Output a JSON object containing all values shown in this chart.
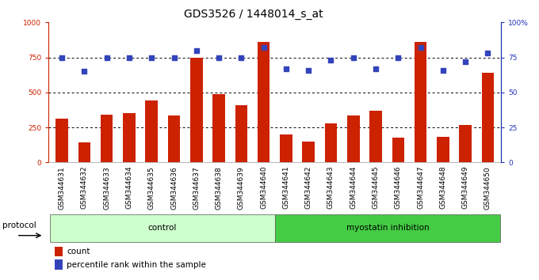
{
  "title": "GDS3526 / 1448014_s_at",
  "samples": [
    "GSM344631",
    "GSM344632",
    "GSM344633",
    "GSM344634",
    "GSM344635",
    "GSM344636",
    "GSM344637",
    "GSM344638",
    "GSM344639",
    "GSM344640",
    "GSM344641",
    "GSM344642",
    "GSM344643",
    "GSM344644",
    "GSM344645",
    "GSM344646",
    "GSM344647",
    "GSM344648",
    "GSM344649",
    "GSM344650"
  ],
  "counts": [
    310,
    145,
    340,
    350,
    440,
    335,
    750,
    490,
    410,
    860,
    200,
    150,
    280,
    335,
    370,
    175,
    860,
    185,
    265,
    640
  ],
  "percentile": [
    75,
    65,
    75,
    75,
    75,
    75,
    80,
    75,
    75,
    82,
    67,
    66,
    73,
    75,
    67,
    75,
    82,
    66,
    72,
    78
  ],
  "bar_color": "#cc2200",
  "dot_color": "#3344bb",
  "control_color": "#ccffcc",
  "inhibition_color": "#44cc44",
  "left_axis_color": "#cc2200",
  "right_axis_color": "#2233bb",
  "ylim_left": [
    0,
    1000
  ],
  "ylim_right": [
    0,
    100
  ],
  "yticks_left": [
    0,
    250,
    500,
    750,
    1000
  ],
  "ytick_labels_left": [
    "0",
    "250",
    "500",
    "750",
    "1000"
  ],
  "yticks_right": [
    0,
    25,
    50,
    75,
    100
  ],
  "ytick_labels_right": [
    "0",
    "25",
    "50",
    "75",
    "100%"
  ],
  "hlines": [
    250,
    500,
    750
  ],
  "protocol_label": "protocol",
  "legend_count": "count",
  "legend_percentile": "percentile rank within the sample",
  "title_fontsize": 10,
  "tick_fontsize": 6.5,
  "label_fontsize": 7.5,
  "xtick_bg_color": "#cccccc",
  "n_control": 10,
  "n_inhibition": 10
}
